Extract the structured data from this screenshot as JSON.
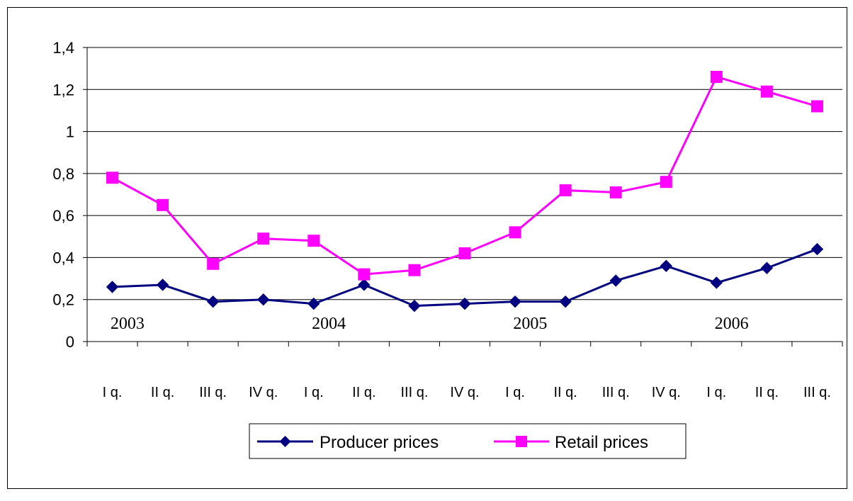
{
  "chart_data": {
    "type": "line",
    "title": "",
    "xlabel": "",
    "ylabel": "",
    "categories": [
      "I q.",
      "II q.",
      "III q.",
      "IV q.",
      "I q.",
      "II q.",
      "III q.",
      "IV q.",
      "I q.",
      "II q.",
      "III q.",
      "IV q.",
      "I q.",
      "II q.",
      "III q."
    ],
    "year_labels": [
      {
        "label": "2003",
        "category_index": 0.3
      },
      {
        "label": "2004",
        "category_index": 4.3
      },
      {
        "label": "2005",
        "category_index": 8.3
      },
      {
        "label": "2006",
        "category_index": 12.3
      }
    ],
    "ylim": [
      0,
      1.4
    ],
    "yticks": [
      0,
      0.2,
      0.4,
      0.6,
      0.8,
      1,
      1.2,
      1.4
    ],
    "ytick_labels": [
      "0",
      "0,2",
      "0,4",
      "0,6",
      "0,8",
      "1",
      "1,2",
      "1,4"
    ],
    "grid": true,
    "legend_position": "bottom",
    "series": [
      {
        "name": "Producer prices",
        "color": "#000080",
        "marker": "diamond",
        "values": [
          0.26,
          0.27,
          0.19,
          0.2,
          0.18,
          0.27,
          0.17,
          0.18,
          0.19,
          0.19,
          0.29,
          0.36,
          0.28,
          0.35,
          0.44
        ]
      },
      {
        "name": "Retail prices",
        "color": "#FF00FF",
        "marker": "square",
        "values": [
          0.78,
          0.65,
          0.37,
          0.49,
          0.48,
          0.32,
          0.34,
          0.42,
          0.52,
          0.72,
          0.71,
          0.76,
          1.26,
          1.19,
          1.12
        ]
      }
    ]
  }
}
